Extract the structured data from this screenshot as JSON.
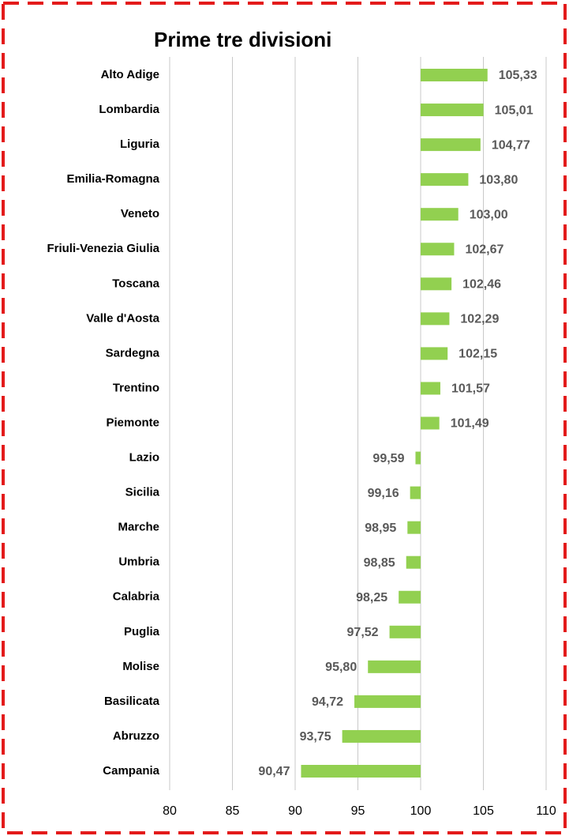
{
  "chart_data": {
    "type": "bar",
    "orientation": "horizontal",
    "title": "Prime tre divisioni",
    "categories": [
      "Alto Adige",
      "Lombardia",
      "Liguria",
      "Emilia-Romagna",
      "Veneto",
      "Friuli-Venezia Giulia",
      "Toscana",
      "Valle d'Aosta",
      "Sardegna",
      "Trentino",
      "Piemonte",
      "Lazio",
      "Sicilia",
      "Marche",
      "Umbria",
      "Calabria",
      "Puglia",
      "Molise",
      "Basilicata",
      "Abruzzo",
      "Campania"
    ],
    "values": [
      105.33,
      105.01,
      104.77,
      103.8,
      103.0,
      102.67,
      102.46,
      102.29,
      102.15,
      101.57,
      101.49,
      99.59,
      99.16,
      98.95,
      98.85,
      98.25,
      97.52,
      95.8,
      94.72,
      93.75,
      90.47
    ],
    "value_labels": [
      "105,33",
      "105,01",
      "104,77",
      "103,80",
      "103,00",
      "102,67",
      "102,46",
      "102,29",
      "102,15",
      "101,57",
      "101,49",
      "99,59",
      "99,16",
      "98,95",
      "98,85",
      "98,25",
      "97,52",
      "95,80",
      "94,72",
      "93,75",
      "90,47"
    ],
    "bar_base": 100,
    "color": "#92d050",
    "xlim": [
      80,
      110
    ],
    "xticks": [
      80,
      85,
      90,
      95,
      100,
      105,
      110
    ],
    "grid": true
  }
}
